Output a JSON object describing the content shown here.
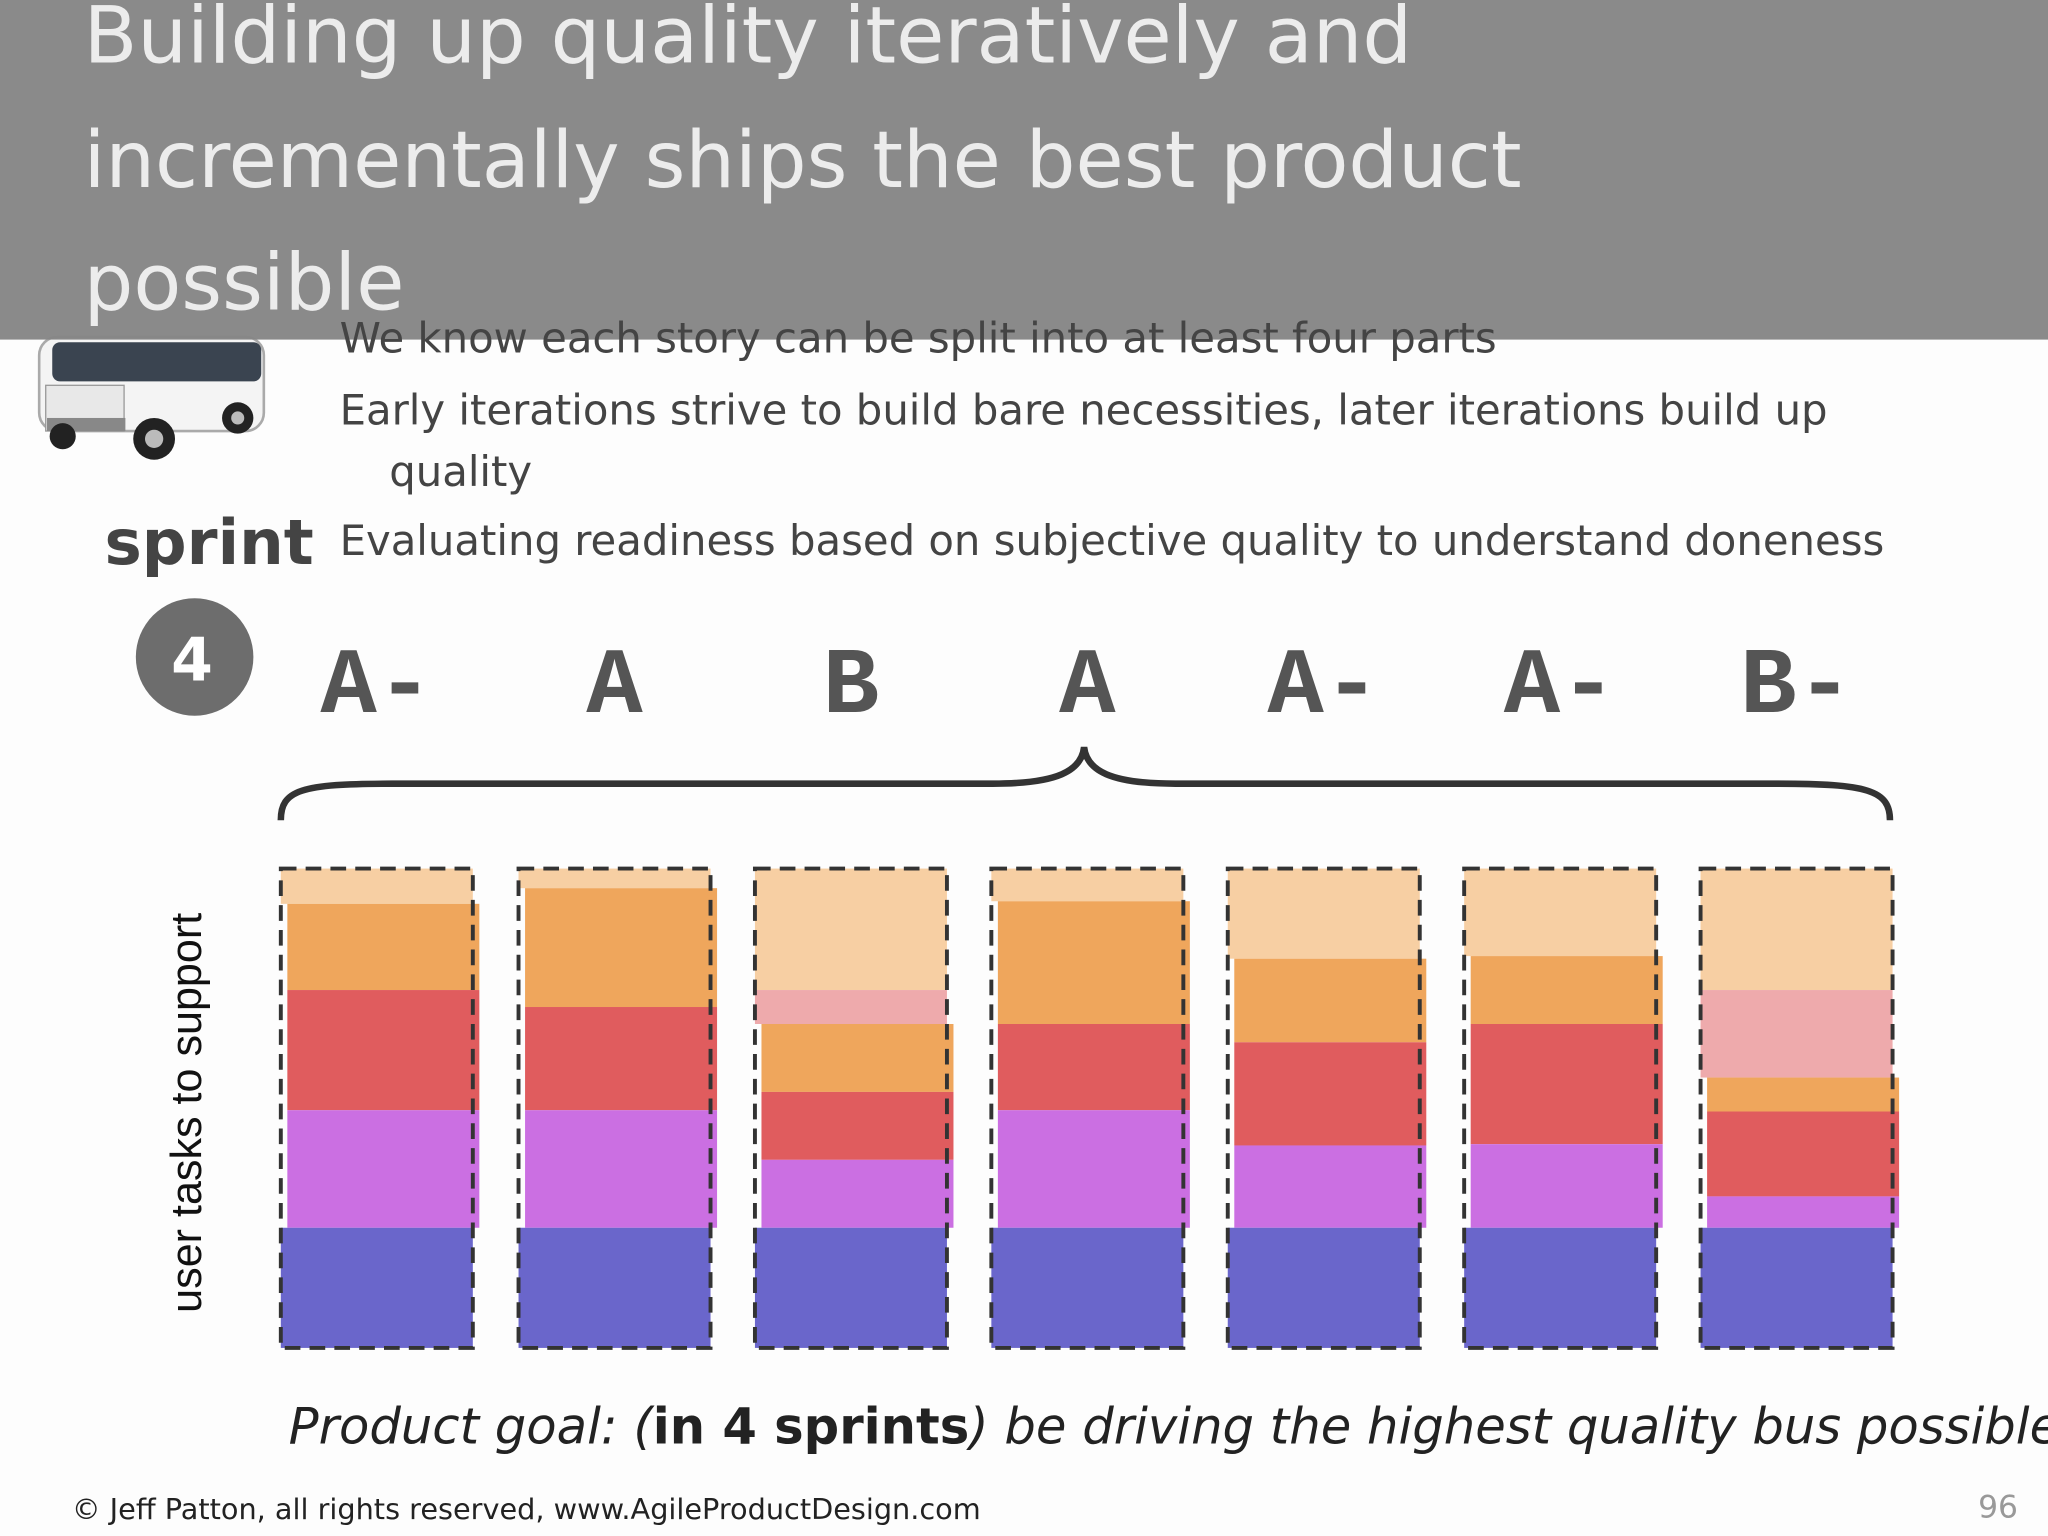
{
  "slide": {
    "title_lines": [
      "Building up quality iteratively and",
      "incrementally ships the best product",
      "possible"
    ],
    "bullets": [
      {
        "lines": [
          "We know each story can be split into at least four parts"
        ]
      },
      {
        "lines": [
          "Early iterations strive to build bare necessities, later iterations build up",
          "quality"
        ]
      },
      {
        "lines": [
          "Evaluating readiness based on subjective quality to understand doneness"
        ]
      }
    ],
    "sprint_label": "sprint",
    "sprint_number": "4",
    "grades": [
      "A-",
      "A",
      "B",
      "A",
      "A-",
      "A-",
      "B-"
    ],
    "axis_label": "user tasks to support",
    "goal": {
      "before": "Product goal: (",
      "bold": "in 4 sprints",
      "after": ") be driving the highest quality bus possible"
    },
    "footer": "© Jeff Patton, all rights reserved, www.AgileProductDesign.com",
    "page_number": "96"
  }
}
